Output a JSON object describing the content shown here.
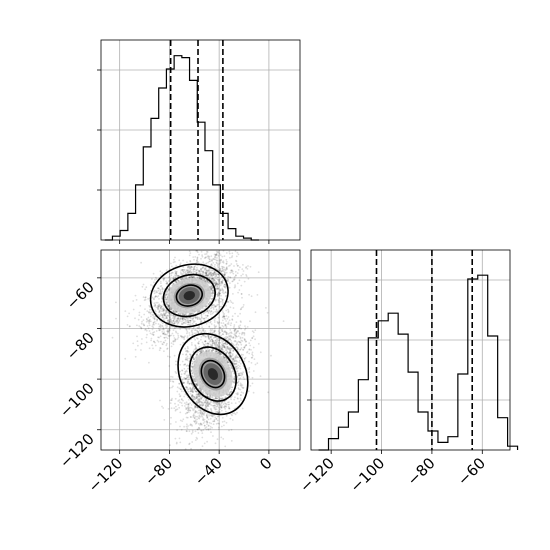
{
  "chart_data": [
    {
      "type": "histogram",
      "panel": "top-left",
      "variable": "x",
      "xlim": [
        -135,
        25
      ],
      "ylim": [
        0,
        1
      ],
      "bins": {
        "start": -132,
        "width": 6.2,
        "values": [
          0.0,
          0.02,
          0.05,
          0.14,
          0.29,
          0.49,
          0.64,
          0.8,
          0.9,
          0.97,
          0.96,
          0.84,
          0.62,
          0.47,
          0.29,
          0.14,
          0.06,
          0.02,
          0.01,
          0.0
        ]
      },
      "quantiles": [
        -79,
        -57,
        -37
      ],
      "grid": true,
      "show_tick_labels": false
    },
    {
      "type": "scatter_density",
      "panel": "bottom-left",
      "xlim": [
        -135,
        25
      ],
      "ylim": [
        -128,
        -49
      ],
      "xticks": [
        -120,
        -80,
        -40,
        0
      ],
      "yticks": [
        -60,
        -80,
        -100,
        -120
      ],
      "grid": true,
      "modes": [
        {
          "cx": -64,
          "cy": -67,
          "sx": 17,
          "sy": 6.5,
          "angle": 16,
          "points": 2800
        },
        {
          "cx": -45,
          "cy": -98,
          "sx": 14,
          "sy": 9,
          "angle": 28,
          "points": 2800
        }
      ],
      "contour_levels": [
        1.0,
        2.0,
        3.0
      ]
    },
    {
      "type": "histogram",
      "panel": "bottom-right",
      "variable": "y",
      "xlim": [
        -128,
        -49
      ],
      "ylim": [
        0,
        1
      ],
      "bins": {
        "start": -125,
        "width": 3.95,
        "values": [
          0.0,
          0.06,
          0.12,
          0.2,
          0.37,
          0.59,
          0.68,
          0.72,
          0.61,
          0.41,
          0.2,
          0.1,
          0.04,
          0.07,
          0.4,
          0.9,
          0.92,
          0.6,
          0.17,
          0.02
        ]
      },
      "quantiles": [
        -102,
        -80,
        -64
      ],
      "xticks": [
        -120,
        -100,
        -80,
        -60
      ],
      "grid": true
    }
  ]
}
